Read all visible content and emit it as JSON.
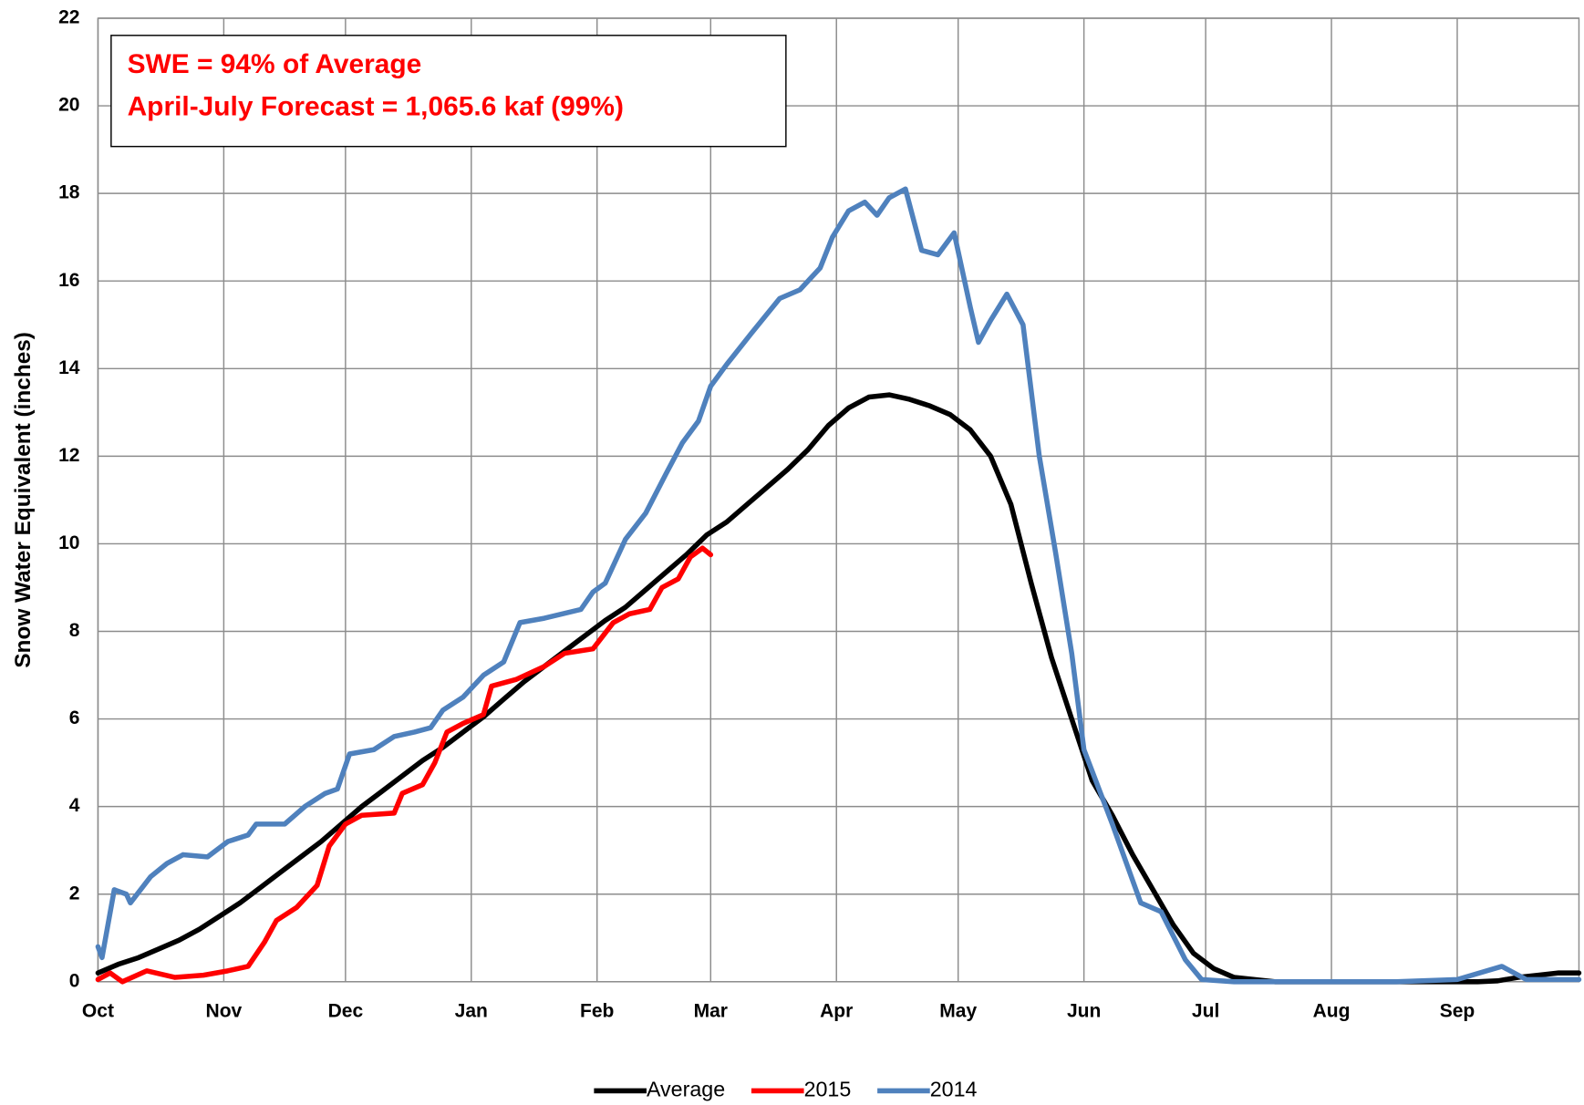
{
  "chart_data": {
    "type": "line",
    "y_label": "Snow Water Equivalent (inches)",
    "annotations": [
      "SWE = 94% of Average",
      "April-July Forecast = 1,065.6 kaf (99%)"
    ],
    "xlim": [
      0,
      365
    ],
    "xticks": [
      {
        "value": 0,
        "label": "Oct"
      },
      {
        "value": 31,
        "label": "Nov"
      },
      {
        "value": 61,
        "label": "Dec"
      },
      {
        "value": 92,
        "label": "Jan"
      },
      {
        "value": 123,
        "label": "Feb"
      },
      {
        "value": 151,
        "label": "Mar"
      },
      {
        "value": 182,
        "label": "Apr"
      },
      {
        "value": 212,
        "label": "May"
      },
      {
        "value": 243,
        "label": "Jun"
      },
      {
        "value": 273,
        "label": "Jul"
      },
      {
        "value": 304,
        "label": "Aug"
      },
      {
        "value": 335,
        "label": "Sep"
      }
    ],
    "ylim": [
      0,
      22
    ],
    "yticks": [
      0,
      2,
      4,
      6,
      8,
      10,
      12,
      14,
      16,
      18,
      20,
      22
    ],
    "grid": true,
    "legend": "bottom",
    "series": [
      {
        "name": "Average",
        "color": "#000000",
        "x": [
          0,
          5,
          10,
          15,
          20,
          25,
          30,
          35,
          40,
          45,
          50,
          55,
          60,
          65,
          70,
          75,
          80,
          85,
          90,
          95,
          100,
          105,
          110,
          115,
          120,
          125,
          130,
          135,
          140,
          145,
          150,
          155,
          160,
          165,
          170,
          175,
          180,
          185,
          190,
          195,
          200,
          205,
          210,
          215,
          220,
          225,
          230,
          235,
          240,
          245,
          250,
          255,
          260,
          265,
          270,
          275,
          280,
          285,
          290,
          300,
          310,
          320,
          330,
          340,
          345,
          350,
          355,
          360,
          365
        ],
        "values": [
          0.2,
          0.4,
          0.55,
          0.75,
          0.95,
          1.2,
          1.5,
          1.8,
          2.15,
          2.5,
          2.85,
          3.2,
          3.6,
          4.0,
          4.35,
          4.7,
          5.05,
          5.35,
          5.7,
          6.05,
          6.45,
          6.85,
          7.2,
          7.55,
          7.9,
          8.25,
          8.55,
          8.95,
          9.35,
          9.75,
          10.2,
          10.5,
          10.9,
          11.3,
          11.7,
          12.15,
          12.7,
          13.1,
          13.35,
          13.4,
          13.3,
          13.15,
          12.95,
          12.6,
          12.0,
          10.9,
          9.1,
          7.4,
          6.0,
          4.6,
          3.8,
          2.9,
          2.1,
          1.3,
          0.65,
          0.3,
          0.1,
          0.05,
          0,
          0,
          0,
          0,
          0,
          0,
          0.02,
          0.1,
          0.15,
          0.2,
          0.2
        ]
      },
      {
        "name": "2015",
        "color": "#ff0000",
        "x": [
          0,
          3,
          6,
          12,
          19,
          26,
          32,
          37,
          41,
          44,
          49,
          54,
          57,
          61,
          65,
          73,
          75,
          80,
          83,
          86,
          90,
          95,
          97,
          103,
          110,
          115,
          122,
          127,
          131,
          136,
          139,
          143,
          146,
          149,
          151
        ],
        "values": [
          0.05,
          0.2,
          0.0,
          0.25,
          0.1,
          0.15,
          0.25,
          0.35,
          0.9,
          1.4,
          1.7,
          2.2,
          3.1,
          3.6,
          3.8,
          3.85,
          4.3,
          4.5,
          5.0,
          5.7,
          5.9,
          6.1,
          6.75,
          6.9,
          7.2,
          7.5,
          7.6,
          8.2,
          8.4,
          8.5,
          9.0,
          9.2,
          9.7,
          9.9,
          9.75
        ]
      },
      {
        "name": "2014",
        "color": "#4f81bd",
        "x": [
          0,
          1,
          4,
          7,
          8,
          13,
          17,
          21,
          27,
          32,
          37,
          39,
          46,
          51,
          56,
          59,
          62,
          68,
          73,
          78,
          82,
          85,
          90,
          95,
          100,
          104,
          110,
          119,
          122,
          125,
          130,
          135,
          140,
          144,
          148,
          151,
          155,
          161,
          168,
          173,
          178,
          181,
          185,
          189,
          192,
          195,
          199,
          203,
          207,
          211,
          215,
          217,
          220,
          224,
          228,
          232,
          236,
          240,
          243,
          250,
          257,
          262,
          268,
          272,
          280,
          300,
          320,
          335,
          346,
          352,
          365
        ],
        "values": [
          0.8,
          0.55,
          2.1,
          2.0,
          1.8,
          2.4,
          2.7,
          2.9,
          2.85,
          3.2,
          3.35,
          3.6,
          3.6,
          4.0,
          4.3,
          4.4,
          5.2,
          5.3,
          5.6,
          5.7,
          5.8,
          6.2,
          6.5,
          7.0,
          7.3,
          8.2,
          8.3,
          8.5,
          8.9,
          9.1,
          10.1,
          10.7,
          11.6,
          12.3,
          12.8,
          13.6,
          14.1,
          14.8,
          15.6,
          15.8,
          16.3,
          17.0,
          17.6,
          17.8,
          17.5,
          17.9,
          18.1,
          16.7,
          16.6,
          17.1,
          15.4,
          14.6,
          15.1,
          15.7,
          15.0,
          12.0,
          9.8,
          7.5,
          5.3,
          3.6,
          1.8,
          1.6,
          0.5,
          0.05,
          0,
          0,
          0,
          0.05,
          0.35,
          0.05,
          0.05
        ]
      }
    ]
  }
}
